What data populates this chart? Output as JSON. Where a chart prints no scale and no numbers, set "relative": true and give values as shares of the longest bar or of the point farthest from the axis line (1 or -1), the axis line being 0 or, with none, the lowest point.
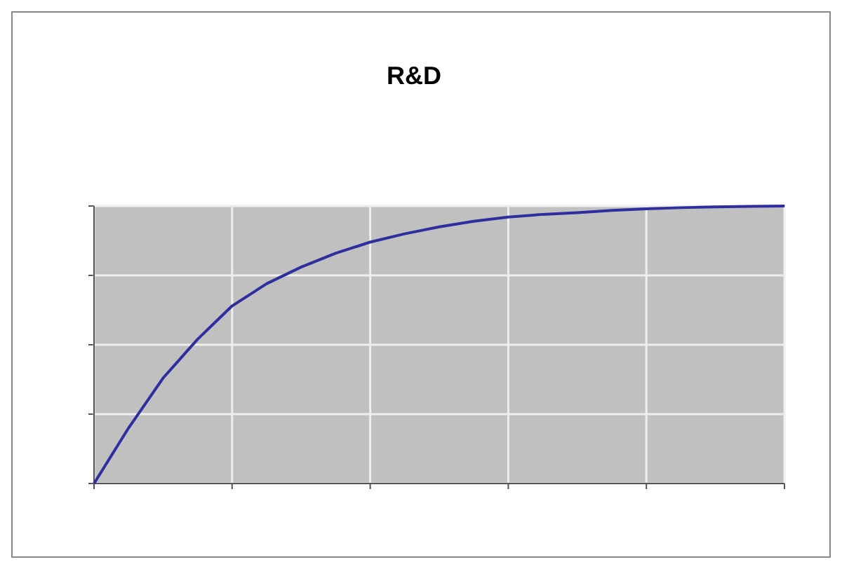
{
  "chart_data": {
    "type": "line",
    "title": "R&D",
    "relative": true,
    "categories": [
      null,
      null,
      null,
      null,
      null,
      null,
      null,
      null,
      null,
      null,
      null,
      null,
      null,
      null,
      null,
      null,
      null,
      null,
      null,
      null,
      null
    ],
    "series": [
      {
        "color": "#2e2e9e",
        "values": [
          0,
          0.2,
          0.38,
          0.52,
          0.64,
          0.72,
          0.78,
          0.83,
          0.87,
          0.9,
          0.925,
          0.945,
          0.96,
          0.97,
          0.976,
          0.984,
          0.99,
          0.994,
          0.997,
          0.999,
          1
        ]
      }
    ],
    "grid": true,
    "marker": "none",
    "line_style": "solid"
  }
}
